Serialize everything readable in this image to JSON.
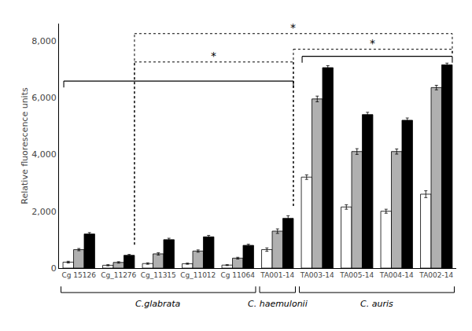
{
  "chart_data": {
    "type": "bar",
    "categories": [
      "Cg 15126",
      "Cg_11276",
      "Cg_11315",
      "Cg_11012",
      "Cg 11064",
      "TA001-14",
      "TA003-14",
      "TA005-14",
      "TA004-14",
      "TA002-14"
    ],
    "series": [
      {
        "color": "white",
        "values": [
          210,
          100,
          160,
          155,
          105,
          650,
          3200,
          2150,
          2000,
          2600
        ],
        "errors": [
          30,
          20,
          25,
          20,
          15,
          60,
          80,
          80,
          70,
          120
        ]
      },
      {
        "color": "#b0b0b0",
        "values": [
          650,
          200,
          500,
          600,
          350,
          1300,
          5950,
          4100,
          4100,
          6350
        ],
        "errors": [
          40,
          25,
          40,
          40,
          30,
          80,
          100,
          100,
          90,
          80
        ]
      },
      {
        "color": "black",
        "values": [
          1200,
          450,
          1000,
          1100,
          800,
          1750,
          7050,
          5400,
          5200,
          7150
        ],
        "errors": [
          50,
          30,
          50,
          50,
          40,
          90,
          70,
          80,
          80,
          60
        ]
      }
    ],
    "ylabel": "Relative fluorescence units",
    "ylim": [
      0,
      8600
    ],
    "yticks": [
      0,
      {
        "value": 2000,
        "label": "2,000"
      },
      {
        "value": 4000,
        "label": "4,000"
      },
      {
        "value": 6000,
        "label": "6,000"
      },
      {
        "value": 8000,
        "label": "8,000"
      }
    ],
    "grid": false,
    "annotations": [
      "*",
      "*",
      "*",
      "C.glabrata",
      "C. haemulonii",
      "C. auris"
    ]
  }
}
